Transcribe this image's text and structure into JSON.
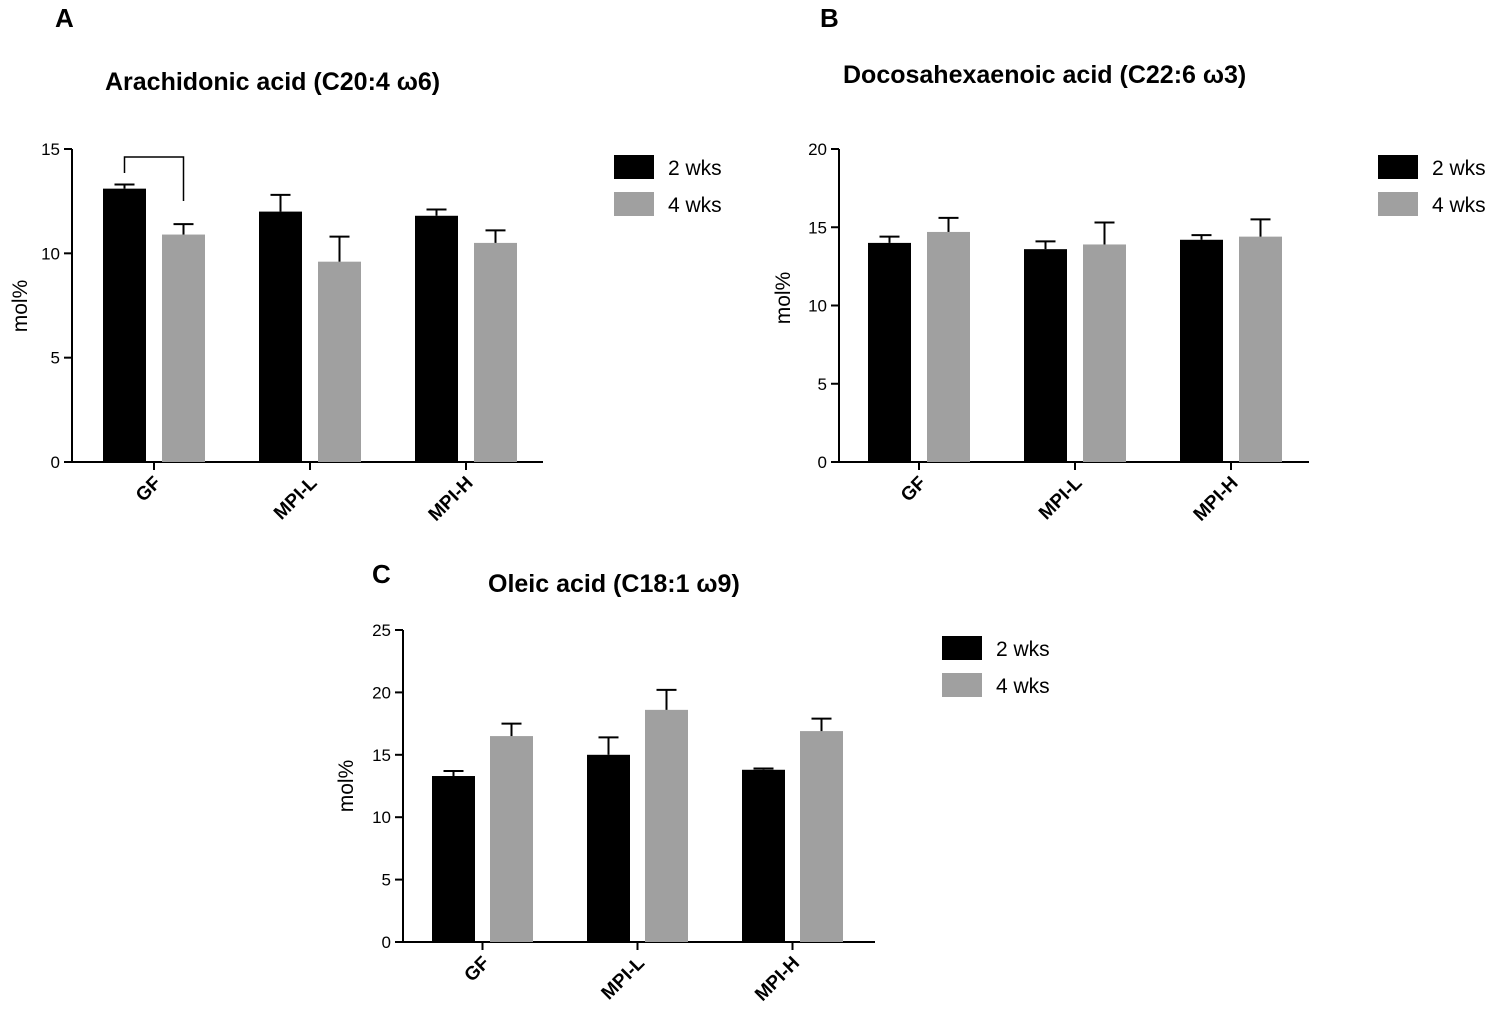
{
  "figure": {
    "colors": {
      "series_2wks": "#000000",
      "series_4wks": "#a0a0a0",
      "axis": "#000000"
    }
  },
  "chart_data": [
    {
      "id": "A",
      "panel_label": "A",
      "type": "bar",
      "title": "Arachidonic acid  (C20:4 ω6)",
      "ylabel": "mol%",
      "xlabel": "",
      "categories": [
        "GF",
        "MPI-L",
        "MPI-H"
      ],
      "ylim": [
        0,
        15
      ],
      "yticks": [
        0,
        5,
        10,
        15
      ],
      "series": [
        {
          "name": "2 wks",
          "values": [
            13.1,
            12.0,
            11.8
          ],
          "errors": [
            0.2,
            0.8,
            0.3
          ]
        },
        {
          "name": "4 wks",
          "values": [
            10.9,
            9.6,
            10.5
          ],
          "errors": [
            0.5,
            1.2,
            0.6
          ]
        }
      ],
      "legend": [
        "2 wks",
        "4 wks"
      ],
      "legend_position": "top-right",
      "annotations": [
        {
          "type": "significance-bracket",
          "from": "GF 2 wks",
          "to": "GF 4 wks"
        }
      ]
    },
    {
      "id": "B",
      "panel_label": "B",
      "type": "bar",
      "title": "Docosahexaenoic acid  (C22:6 ω3)",
      "ylabel": "mol%",
      "xlabel": "",
      "categories": [
        "GF",
        "MPI-L",
        "MPI-H"
      ],
      "ylim": [
        0,
        20
      ],
      "yticks": [
        0,
        5,
        10,
        15,
        20
      ],
      "series": [
        {
          "name": "2 wks",
          "values": [
            14.0,
            13.6,
            14.2
          ],
          "errors": [
            0.4,
            0.5,
            0.3
          ]
        },
        {
          "name": "4 wks",
          "values": [
            14.7,
            13.9,
            14.4
          ],
          "errors": [
            0.9,
            1.4,
            1.1
          ]
        }
      ],
      "legend": [
        "2 wks",
        "4 wks"
      ],
      "legend_position": "top-right",
      "annotations": []
    },
    {
      "id": "C",
      "panel_label": "C",
      "type": "bar",
      "title": "Oleic acid (C18:1 ω9)",
      "ylabel": "mol%",
      "xlabel": "",
      "categories": [
        "GF",
        "MPI-L",
        "MPI-H"
      ],
      "ylim": [
        0,
        25
      ],
      "yticks": [
        0,
        5,
        10,
        15,
        20,
        25
      ],
      "series": [
        {
          "name": "2 wks",
          "values": [
            13.3,
            15.0,
            13.8
          ],
          "errors": [
            0.4,
            1.4,
            0.1
          ]
        },
        {
          "name": "4 wks",
          "values": [
            16.5,
            18.6,
            16.9
          ],
          "errors": [
            1.0,
            1.6,
            1.0
          ]
        }
      ],
      "legend": [
        "2 wks",
        "4 wks"
      ],
      "legend_position": "top-right",
      "annotations": []
    }
  ]
}
